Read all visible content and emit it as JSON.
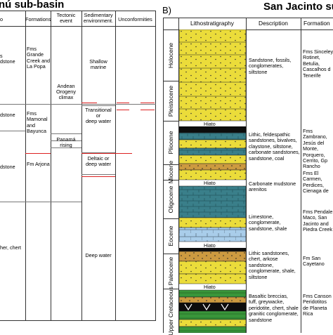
{
  "panelA": {
    "title": "nú sub-basin",
    "headers": {
      "left": "o",
      "formations": "Formations",
      "tectonic": [
        "Tectonic",
        "event"
      ],
      "sedimentary": [
        "Sedimentary",
        "environment."
      ],
      "unconformities": "Unconformities"
    },
    "rows": [
      {
        "left": [
          "",
          "",
          "s",
          "dstone"
        ],
        "formations": [
          "Fms Grande",
          "Creek and",
          "La Popa"
        ],
        "tectonic": [],
        "environment": [
          "Shallow",
          "marine"
        ]
      },
      {
        "left": [
          "dstone"
        ],
        "formations": [
          "Fms Mamonal",
          "and Bayunca"
        ],
        "tectonic": [
          "Andean",
          "Orogeny",
          "climax"
        ],
        "environment": [
          "Transitional",
          "or",
          "deep water"
        ]
      },
      {
        "left": [
          "dstone"
        ],
        "formations": [
          "Fm Arjona"
        ],
        "tectonic": [
          "Panamá",
          "rising"
        ],
        "environment": [
          "Deltaic or",
          "deep water"
        ]
      },
      {
        "left": [
          "",
          "her, chert"
        ],
        "formations": [],
        "tectonic": [],
        "environment": [
          "Deep water"
        ]
      }
    ]
  },
  "panelB": {
    "label": "B)",
    "title": "San Jacinto sub",
    "headers": {
      "litho": "Lithostratigraphy",
      "description": "Description",
      "formations": "Formation"
    },
    "epochs": [
      "Holocene",
      "Pleistocene",
      "Pliocene",
      "Miocene",
      "Oligocene",
      "Eocene",
      "Paleocene",
      "Upper Cretaceous"
    ],
    "hiato_labels": [
      "Hiato",
      "Hiato",
      "Hiato",
      "Hiato"
    ],
    "descriptions": [
      [
        "Sandstone, fossils,",
        "conglomerates,",
        "siltstone"
      ],
      [
        "Lithic, feldespathic",
        "sandstones, bivalves,",
        "claystone, siltstone,",
        "carbonate sandstones,",
        "sandstone, coal"
      ],
      [
        "Carbonate mudstone",
        "arenitos"
      ],
      [
        "Limestone,",
        "conglomerate,",
        "sandstone, shale"
      ],
      [
        "Lithic sandstones,",
        "chert, arkose sandstone,",
        "conglomerate, shale,",
        "siltstone"
      ],
      [
        "Basaltic breccias,",
        "tuff, greywacke,",
        "peridotite, chert, shale",
        "granitic conglomerate,",
        "sandstone"
      ]
    ],
    "formations": [
      [
        "Fms Sinceley",
        "Rotinet,",
        "Betulia,",
        "Cascalhos d",
        "Tenerife"
      ],
      [
        "Fms",
        "Zambrano,",
        "Jesús del",
        "Monte,",
        "Porquero,",
        "Cerrito, Gp",
        "Rancho"
      ],
      [
        "Fms El",
        "Carmen,",
        "Perdices,",
        "Cienaga de"
      ],
      [
        "Fms Pendale",
        "Maco, San",
        "Jacinto and",
        "Piedra Creek"
      ],
      [
        "Fm San",
        "Cayetano"
      ],
      [
        "Fms Canson",
        "Peridotitos",
        "de Planeta",
        "Rica"
      ]
    ],
    "colors": {
      "sand": "#ebdc3a",
      "coarse": "#cc9a40",
      "teal": "#3a7f8a",
      "blue": "#a9cdea",
      "green": "#39963a",
      "black": "#0d0d0d"
    }
  }
}
